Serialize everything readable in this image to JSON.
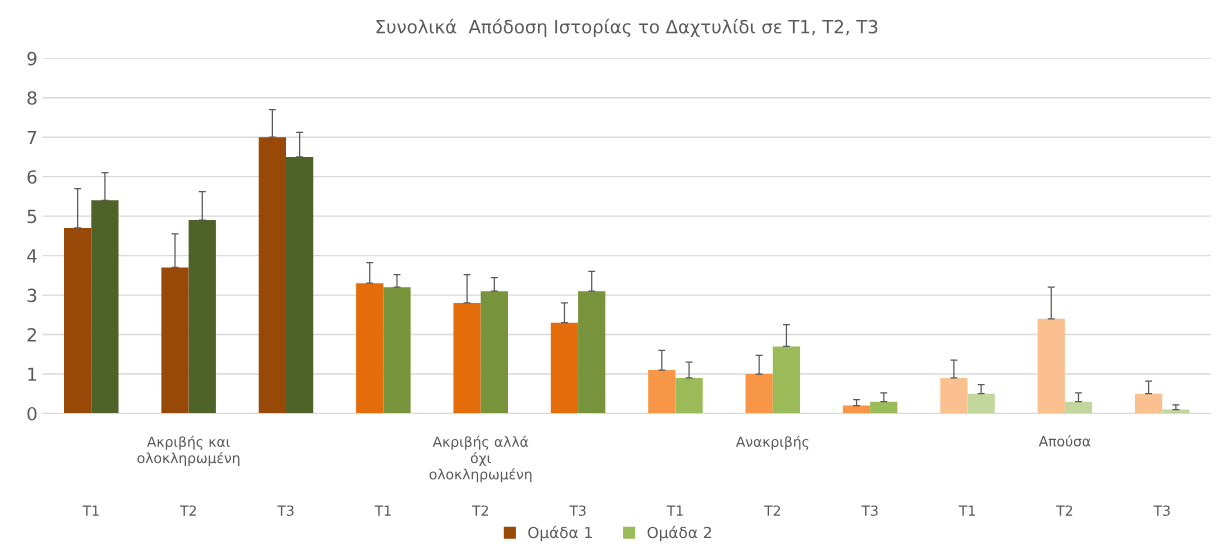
{
  "chart_data": {
    "type": "bar",
    "title": "Συνολικά  Απόδοση Ιστορίας το Δαχτυλίδι σε T1, T2, T3",
    "categories": [
      "T1",
      "T2",
      "T3",
      "T1",
      "T2",
      "T3",
      "T1",
      "T2",
      "T3",
      "T1",
      "T2",
      "T3"
    ],
    "series": [
      {
        "name": "Ομάδα 1",
        "color": "#984807",
        "colors": [
          "#984807",
          "#984807",
          "#984807",
          "#e46c0a",
          "#e46c0a",
          "#e46c0a",
          "#f79646",
          "#f79646",
          "#f79646",
          "#fac090",
          "#fac090",
          "#fac090"
        ],
        "values": [
          4.7,
          3.7,
          7.0,
          3.3,
          2.8,
          2.3,
          1.1,
          1.0,
          0.2,
          0.9,
          2.4,
          0.5
        ],
        "errors": [
          [
            4.7,
            5.7
          ],
          [
            3.7,
            4.55
          ],
          [
            7.0,
            7.7
          ],
          [
            3.3,
            3.82
          ],
          [
            2.8,
            3.52
          ],
          [
            2.3,
            2.8
          ],
          [
            1.1,
            1.6
          ],
          [
            1.0,
            1.47
          ],
          [
            0.2,
            0.35
          ],
          [
            0.9,
            1.35
          ],
          [
            2.4,
            3.2
          ],
          [
            0.5,
            0.82
          ]
        ]
      },
      {
        "name": "Ομάδα 2",
        "color": "#9bbb59",
        "colors": [
          "#4f6228",
          "#4f6228",
          "#4f6228",
          "#77933c",
          "#77933c",
          "#77933c",
          "#9bbb59",
          "#9bbb59",
          "#9bbb59",
          "#c3d69b",
          "#c3d69b",
          "#c3d69b"
        ],
        "values": [
          5.4,
          4.9,
          6.5,
          3.2,
          3.1,
          3.1,
          0.9,
          1.7,
          0.3,
          0.5,
          0.3,
          0.1
        ],
        "errors": [
          [
            5.4,
            6.1
          ],
          [
            4.9,
            5.62
          ],
          [
            6.5,
            7.12
          ],
          [
            3.2,
            3.52
          ],
          [
            3.1,
            3.44
          ],
          [
            3.1,
            3.6
          ],
          [
            0.9,
            1.3
          ],
          [
            1.7,
            2.25
          ],
          [
            0.3,
            0.52
          ],
          [
            0.5,
            0.73
          ],
          [
            0.3,
            0.52
          ],
          [
            0.1,
            0.22
          ]
        ]
      }
    ],
    "annotations": [
      "Ακριβής και\nολοκληρωμένη",
      "Ακριβής αλλά\nόχι\nολοκληρωμένη",
      "Ανακριβής",
      "Απούσα"
    ],
    "ylim": [
      0,
      9
    ],
    "yticks": [
      0,
      1,
      2,
      3,
      4,
      5,
      6,
      7,
      8,
      9
    ],
    "grid": "y",
    "legend": "bottom"
  }
}
